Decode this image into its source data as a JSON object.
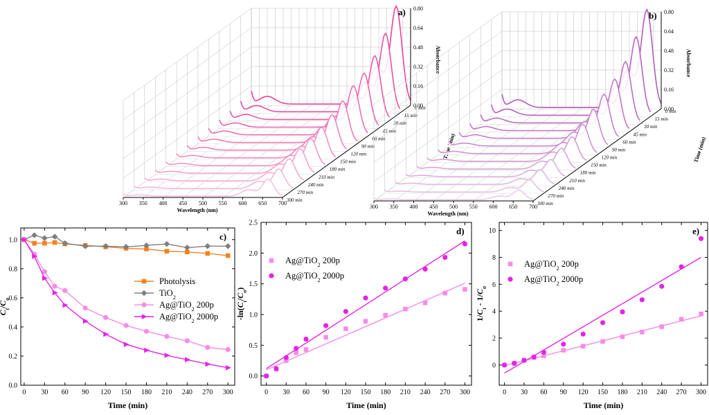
{
  "colors": {
    "photolysis": "#f5821f",
    "tio2": "#7f7f7f",
    "ag200": "#f78ce8",
    "ag2000": "#e523e5",
    "panel_a_peak": "#e8439c",
    "panel_a_light": "#f7cde3",
    "panel_b_peak": "#b45ab8",
    "panel_b_light": "#ecd6ec"
  },
  "chart_data": [
    {
      "panel": "a)",
      "type": "line",
      "xlabel": "Wavelength (nm)",
      "ylabel": "Absorbance",
      "zlabel": "Time (min)",
      "x_ticks": [
        "300",
        "350",
        "400",
        "450",
        "500",
        "550",
        "600",
        "650",
        "700"
      ],
      "y_ticks": [
        "0.00",
        "0.16",
        "0.32",
        "0.48",
        "0.64",
        "0.80"
      ],
      "time_labels": [
        "0 min",
        "15 min",
        "30 min",
        "45 min",
        "60 min",
        "90 min",
        "120 min",
        "150 min",
        "180 min",
        "210 min",
        "240 min",
        "270 min",
        "300 min"
      ],
      "peak_absorbance": [
        0.8,
        0.64,
        0.52,
        0.44,
        0.4,
        0.34,
        0.29,
        0.25,
        0.22,
        0.2,
        0.18,
        0.16,
        0.14
      ],
      "xlim": [
        300,
        700
      ],
      "ylim": [
        0,
        0.8
      ]
    },
    {
      "panel": "b)",
      "type": "line",
      "xlabel": "Wavelength (nm)",
      "ylabel": "Absorbance",
      "zlabel": "Time (min)",
      "x_ticks": [
        "300",
        "350",
        "400",
        "450",
        "500",
        "550",
        "600",
        "650",
        "700"
      ],
      "y_ticks": [
        "0.00",
        "0.16",
        "0.32",
        "0.48",
        "0.64",
        "0.80"
      ],
      "time_labels": [
        "0 min",
        "15 min",
        "30 min",
        "45 min",
        "60 min",
        "90 min",
        "120 min",
        "150 min",
        "180 min",
        "210 min",
        "240 min",
        "270 min",
        "300 min"
      ],
      "peak_absorbance": [
        0.8,
        0.64,
        0.5,
        0.42,
        0.36,
        0.3,
        0.24,
        0.2,
        0.17,
        0.14,
        0.12,
        0.1,
        0.08
      ],
      "xlim": [
        300,
        700
      ],
      "ylim": [
        0,
        0.8
      ]
    },
    {
      "panel": "c)",
      "type": "line",
      "xlabel": "Time (min)",
      "ylabel": "Ct/Co",
      "x_ticks": [
        0,
        30,
        60,
        90,
        120,
        150,
        180,
        210,
        240,
        270,
        300
      ],
      "y_ticks": [
        0.0,
        0.2,
        0.4,
        0.6,
        0.8,
        1.0
      ],
      "xlim": [
        -5,
        310
      ],
      "ylim": [
        0,
        1.08
      ],
      "legend": "center-right",
      "series": [
        {
          "name": "Photolysis",
          "marker": "square",
          "x": [
            0,
            15,
            30,
            45,
            60,
            90,
            120,
            150,
            180,
            210,
            240,
            270,
            300
          ],
          "y": [
            1.0,
            0.975,
            0.975,
            0.98,
            0.97,
            0.96,
            0.95,
            0.94,
            0.935,
            0.92,
            0.915,
            0.905,
            0.89
          ]
        },
        {
          "name": "TiO2",
          "marker": "diamond",
          "x": [
            0,
            15,
            30,
            45,
            60,
            90,
            120,
            150,
            180,
            210,
            240,
            270,
            300
          ],
          "y": [
            1.0,
            1.03,
            1.01,
            1.02,
            0.975,
            0.955,
            0.955,
            0.95,
            0.96,
            0.97,
            0.945,
            0.955,
            0.955
          ]
        },
        {
          "name": "Ag@TiO2 200p",
          "marker": "circle",
          "x": [
            0,
            15,
            30,
            45,
            60,
            90,
            120,
            150,
            180,
            210,
            240,
            270,
            300
          ],
          "y": [
            1.0,
            0.9,
            0.78,
            0.68,
            0.65,
            0.53,
            0.465,
            0.41,
            0.37,
            0.335,
            0.305,
            0.26,
            0.245
          ]
        },
        {
          "name": "Ag@TiO2 2000p",
          "marker": "triangle",
          "x": [
            0,
            15,
            30,
            45,
            60,
            90,
            120,
            150,
            180,
            210,
            240,
            270,
            300
          ],
          "y": [
            1.0,
            0.885,
            0.735,
            0.635,
            0.55,
            0.44,
            0.35,
            0.28,
            0.24,
            0.205,
            0.175,
            0.145,
            0.12
          ]
        }
      ]
    },
    {
      "panel": "d)",
      "type": "scatter",
      "xlabel": "Time (min)",
      "ylabel": "-ln(Ct/Co)",
      "x_ticks": [
        0,
        30,
        60,
        90,
        120,
        150,
        180,
        210,
        240,
        270,
        300
      ],
      "y_ticks": [
        0.0,
        0.5,
        1.0,
        1.5,
        2.0,
        2.5
      ],
      "xlim": [
        -8,
        310
      ],
      "ylim": [
        -0.15,
        2.5
      ],
      "legend": "top-left",
      "series": [
        {
          "name": "Ag@TiO2 200p",
          "marker": "square",
          "x": [
            0,
            15,
            30,
            45,
            60,
            90,
            120,
            150,
            180,
            210,
            240,
            270,
            300
          ],
          "y": [
            0.0,
            0.11,
            0.25,
            0.38,
            0.43,
            0.63,
            0.77,
            0.89,
            0.99,
            1.09,
            1.19,
            1.35,
            1.41
          ],
          "fit": [
            0.1,
            1.51
          ]
        },
        {
          "name": "Ag@TiO2 2000p",
          "marker": "circle",
          "x": [
            0,
            15,
            30,
            45,
            60,
            90,
            120,
            150,
            180,
            210,
            240,
            270,
            300
          ],
          "y": [
            0.0,
            0.12,
            0.3,
            0.45,
            0.6,
            0.82,
            1.05,
            1.27,
            1.43,
            1.58,
            1.74,
            1.93,
            2.15
          ],
          "fit": [
            0.12,
            2.2
          ]
        }
      ]
    },
    {
      "panel": "e)",
      "type": "scatter",
      "xlabel": "Time (min)",
      "ylabel": "1/Ct - 1/Co",
      "x_ticks": [
        0,
        30,
        60,
        90,
        120,
        150,
        180,
        210,
        240,
        270,
        300
      ],
      "y_ticks": [
        0,
        2,
        4,
        6,
        8,
        10
      ],
      "xlim": [
        -8,
        310
      ],
      "ylim": [
        -1.5,
        10.6
      ],
      "legend": "top-left",
      "series": [
        {
          "name": "Ag@TiO2 200p",
          "marker": "square",
          "x": [
            0,
            15,
            30,
            45,
            60,
            90,
            120,
            150,
            180,
            210,
            240,
            270,
            300
          ],
          "y": [
            0.0,
            0.13,
            0.35,
            0.55,
            0.68,
            1.1,
            1.4,
            1.75,
            2.1,
            2.45,
            2.85,
            3.4,
            3.8
          ],
          "fit": [
            -0.05,
            3.65
          ]
        },
        {
          "name": "Ag@TiO2 2000p",
          "marker": "circle",
          "x": [
            0,
            15,
            30,
            45,
            60,
            90,
            120,
            150,
            180,
            210,
            240,
            270,
            300
          ],
          "y": [
            0.0,
            0.13,
            0.35,
            0.6,
            0.95,
            1.55,
            2.3,
            3.15,
            3.95,
            4.85,
            5.85,
            7.3,
            9.4
          ],
          "fit": [
            -0.6,
            8.0
          ]
        }
      ]
    }
  ]
}
